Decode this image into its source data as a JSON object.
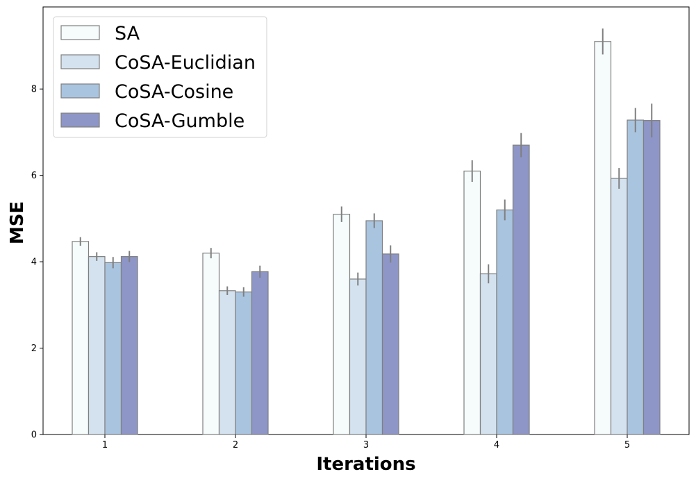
{
  "chart_data": {
    "type": "bar",
    "title": "",
    "xlabel": "Iterations",
    "ylabel": "MSE",
    "categories": [
      "1",
      "2",
      "3",
      "4",
      "5"
    ],
    "ylim": [
      0,
      9.9
    ],
    "yticks": [
      0,
      2,
      4,
      6,
      8
    ],
    "grid": false,
    "legend_position": "top-left",
    "series": [
      {
        "name": "SA",
        "color": "#f5fcfb",
        "values": [
          4.47,
          4.2,
          5.1,
          6.1,
          9.1
        ],
        "errors": [
          0.1,
          0.12,
          0.18,
          0.25,
          0.3
        ]
      },
      {
        "name": "CoSA-Euclidian",
        "color": "#d4e2ef",
        "values": [
          4.12,
          3.33,
          3.6,
          3.72,
          5.93
        ],
        "errors": [
          0.1,
          0.1,
          0.15,
          0.22,
          0.24
        ]
      },
      {
        "name": "CoSA-Cosine",
        "color": "#a9c4df",
        "values": [
          3.98,
          3.3,
          4.95,
          5.2,
          7.28
        ],
        "errors": [
          0.13,
          0.11,
          0.17,
          0.24,
          0.28
        ]
      },
      {
        "name": "CoSA-Gumble",
        "color": "#8e96c7",
        "values": [
          4.12,
          3.77,
          4.18,
          6.7,
          7.27
        ],
        "errors": [
          0.13,
          0.14,
          0.2,
          0.28,
          0.39
        ]
      }
    ]
  }
}
